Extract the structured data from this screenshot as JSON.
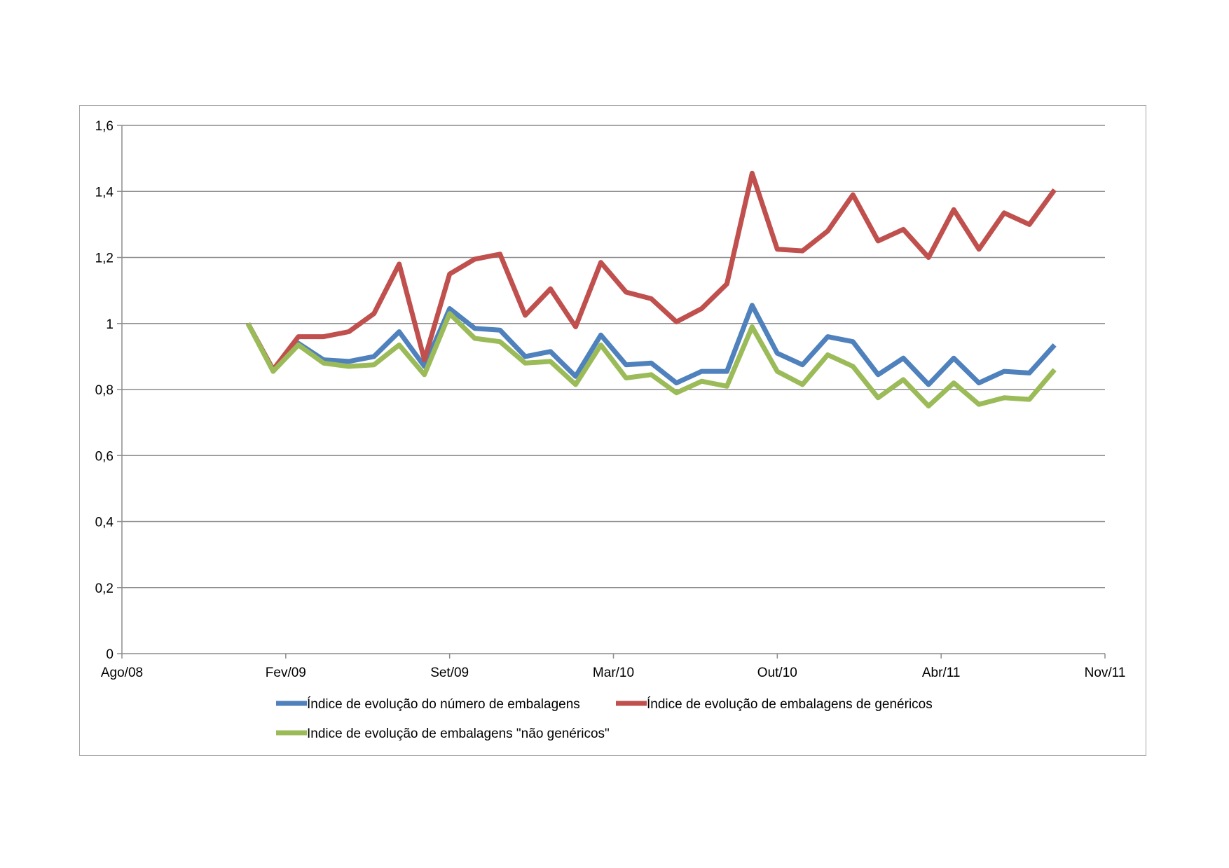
{
  "chart_data": {
    "type": "line",
    "title": "",
    "xlabel": "",
    "ylabel": "",
    "x_tick_labels": [
      "Ago/08",
      "Fev/09",
      "Set/09",
      "Mar/10",
      "Out/10",
      "Abr/11",
      "Nov/11"
    ],
    "y_tick_labels": [
      "0",
      "0,2",
      "0,4",
      "0,6",
      "0,8",
      "1",
      "1,2",
      "1,4",
      "1,6"
    ],
    "ylim": [
      0,
      1.6
    ],
    "x_start_month_index": 5,
    "series": [
      {
        "name": "Índice de evolução do número de embalagens",
        "color": "#4f81bd",
        "values": [
          1.0,
          0.86,
          0.94,
          0.89,
          0.885,
          0.9,
          0.975,
          0.87,
          1.045,
          0.985,
          0.98,
          0.9,
          0.915,
          0.84,
          0.965,
          0.875,
          0.88,
          0.82,
          0.855,
          0.855,
          1.055,
          0.91,
          0.875,
          0.96,
          0.945,
          0.845,
          0.895,
          0.815,
          0.895,
          0.82,
          0.855,
          0.85,
          0.935
        ]
      },
      {
        "name": "Índice de evolução de embalagens de genéricos",
        "color": "#c0504d",
        "values": [
          1.0,
          0.86,
          0.96,
          0.96,
          0.975,
          1.03,
          1.18,
          0.89,
          1.15,
          1.195,
          1.21,
          1.025,
          1.105,
          0.99,
          1.185,
          1.095,
          1.075,
          1.005,
          1.045,
          1.12,
          1.455,
          1.225,
          1.22,
          1.28,
          1.39,
          1.25,
          1.285,
          1.2,
          1.345,
          1.225,
          1.335,
          1.3,
          1.405
        ]
      },
      {
        "name": "Indice de evolução de embalagens \"não genéricos\"",
        "color": "#9bbb59",
        "values": [
          1.0,
          0.855,
          0.935,
          0.88,
          0.87,
          0.875,
          0.935,
          0.845,
          1.03,
          0.955,
          0.945,
          0.88,
          0.885,
          0.815,
          0.935,
          0.835,
          0.845,
          0.79,
          0.825,
          0.81,
          0.99,
          0.855,
          0.815,
          0.905,
          0.87,
          0.775,
          0.83,
          0.75,
          0.82,
          0.755,
          0.775,
          0.77,
          0.86
        ]
      }
    ],
    "legend_position": "bottom"
  }
}
